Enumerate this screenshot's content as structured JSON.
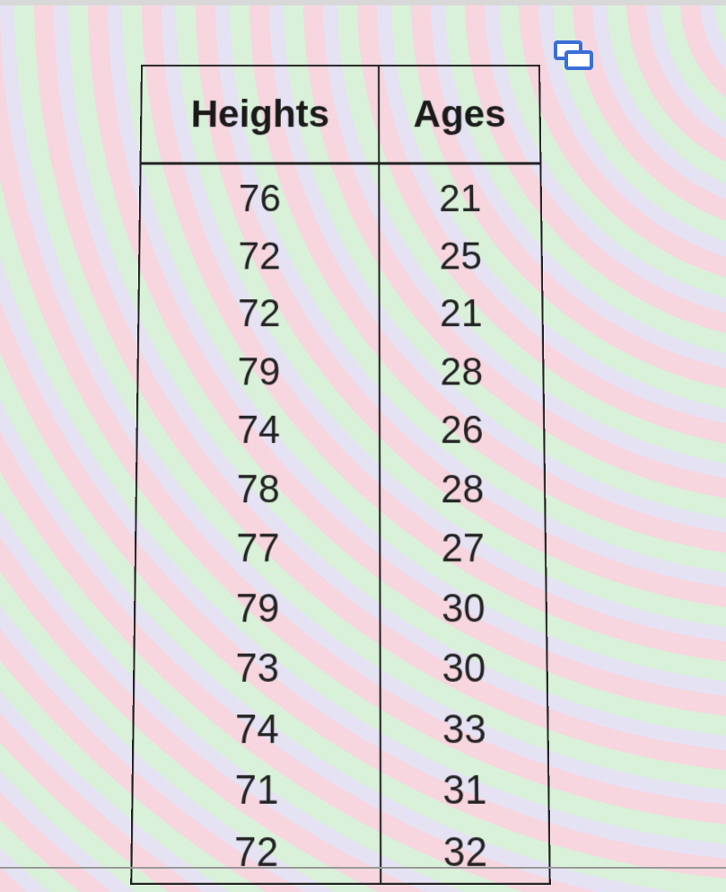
{
  "icons": {
    "copy": "copy-icon",
    "accent": "#3a6fd8"
  },
  "table": {
    "headers": [
      "Heights",
      "Ages"
    ],
    "rows": [
      [
        "76",
        "21"
      ],
      [
        "72",
        "25"
      ],
      [
        "72",
        "21"
      ],
      [
        "79",
        "28"
      ],
      [
        "74",
        "26"
      ],
      [
        "78",
        "28"
      ],
      [
        "77",
        "27"
      ],
      [
        "79",
        "30"
      ],
      [
        "73",
        "30"
      ],
      [
        "74",
        "33"
      ],
      [
        "71",
        "31"
      ],
      [
        "72",
        "32"
      ]
    ]
  }
}
